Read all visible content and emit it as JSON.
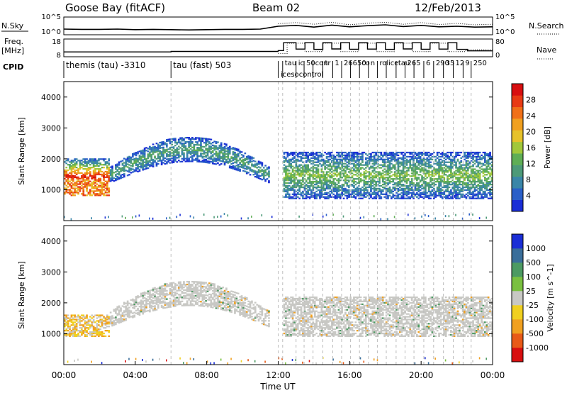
{
  "header": {
    "station": "Goose Bay (fitACF)",
    "beam": "Beam 02",
    "date": "12/Feb/2013"
  },
  "labels": {
    "nsky": "N.Sky",
    "freq": "Freq.",
    "freq_unit": "[MHz]",
    "cpid": "CPID",
    "nsearch": "N.Search",
    "nave": "Nave"
  },
  "cpid_segments": [
    {
      "start": 0,
      "label": "themis (tau) -3310"
    },
    {
      "start": 6,
      "label": "tau (fast) 503"
    },
    {
      "start": 12.0,
      "label": ""
    },
    {
      "start": 12.25,
      "label": "tau"
    },
    {
      "start": 13.0,
      "label": "ic"
    },
    {
      "start": 13.45,
      "label": "50"
    },
    {
      "start": 13.95,
      "label": "con"
    },
    {
      "start": 14.5,
      "label": "tr"
    },
    {
      "start": 15.05,
      "label": "1"
    },
    {
      "start": 15.55,
      "label": "26"
    },
    {
      "start": 16.05,
      "label": "650"
    },
    {
      "start": 16.55,
      "label": "co"
    },
    {
      "start": 17.05,
      "label": "n"
    },
    {
      "start": 17.55,
      "label": "rol"
    },
    {
      "start": 18.05,
      "label": "ice"
    },
    {
      "start": 18.6,
      "label": "tau"
    },
    {
      "start": 19.1,
      "label": "26"
    },
    {
      "start": 19.6,
      "label": "5"
    },
    {
      "start": 20.15,
      "label": "6"
    },
    {
      "start": 20.7,
      "label": "290"
    },
    {
      "start": 21.25,
      "label": "35"
    },
    {
      "start": 21.8,
      "label": "12"
    },
    {
      "start": 22.35,
      "label": "9"
    },
    {
      "start": 22.8,
      "label": "250"
    }
  ],
  "cpid_lowrow": "icesocontrol",
  "chart_data": [
    {
      "type": "line",
      "name": "N.Sky / N.Search",
      "left_ticks": [
        "10^5",
        "10^0"
      ],
      "right_ticks": [
        "10^5",
        "10^0"
      ],
      "x_range": [
        0,
        24
      ],
      "y_range": [
        0,
        5
      ],
      "series": [
        {
          "name": "N.Sky",
          "style": "solid",
          "values": [
            1.5,
            1.4,
            1.4,
            1.5,
            1.3,
            1.4,
            1.3,
            1.2,
            1.3,
            1.4,
            1.4,
            1.5,
            2.5,
            2.8,
            2.2,
            2.9,
            2.3,
            2.7,
            3.0,
            2.4,
            2.8,
            2.3,
            2.5,
            2.2,
            2.3
          ]
        },
        {
          "name": "N.Search",
          "style": "dotted",
          "values": [
            null,
            null,
            null,
            null,
            null,
            null,
            null,
            null,
            null,
            null,
            null,
            null,
            3.4,
            3.8,
            3.2,
            3.9,
            3.0,
            3.6,
            3.9,
            3.2,
            3.8,
            3.1,
            3.5,
            3.0,
            3.2
          ]
        }
      ]
    },
    {
      "type": "line",
      "name": "Freq / Nave",
      "left_ticks": [
        "18",
        "8"
      ],
      "right_ticks": [
        "80",
        "0"
      ],
      "x_range": [
        0,
        24
      ],
      "freq_range": [
        8,
        18
      ],
      "series": [
        {
          "name": "Freq",
          "style": "solid",
          "axis": "left",
          "times": [
            0,
            6,
            6,
            12,
            12,
            12.3,
            12.3,
            13.0,
            13.0,
            13.5,
            13.5,
            14.0,
            14.0,
            14.5,
            14.5,
            15.0,
            15.0,
            15.5,
            15.5,
            16.0,
            16.0,
            16.5,
            16.5,
            17.0,
            17.0,
            17.5,
            17.5,
            18.0,
            18.0,
            18.5,
            18.5,
            19.0,
            19.0,
            19.5,
            19.5,
            20.0,
            20.0,
            20.5,
            20.5,
            21.0,
            21.0,
            21.5,
            21.5,
            22.0,
            22.0,
            22.6,
            22.6,
            24
          ],
          "values": [
            10.3,
            10.3,
            10.6,
            10.6,
            11.2,
            11.2,
            16.5,
            16.5,
            12.2,
            12.2,
            16.5,
            16.5,
            12.0,
            12.0,
            16.5,
            16.5,
            12.3,
            12.3,
            16.5,
            16.5,
            12.1,
            12.1,
            16.5,
            16.5,
            12.2,
            12.2,
            16.5,
            16.5,
            12.0,
            12.0,
            16.5,
            16.5,
            12.3,
            12.3,
            16.5,
            16.5,
            12.1,
            12.1,
            16.5,
            16.5,
            12.2,
            12.2,
            16.5,
            16.5,
            12.0,
            12.0,
            11.0,
            11.0
          ]
        },
        {
          "name": "Nave",
          "style": "dotted",
          "axis": "right",
          "times": [
            12,
            12.5,
            12.5,
            13.5,
            13.5,
            14.5,
            14.5,
            15.5,
            15.5,
            16.5,
            16.5,
            17.5,
            17.5,
            18.5,
            18.5,
            19.5,
            19.5,
            20.5,
            20.5,
            21.5,
            21.5,
            22.5,
            22.5,
            24
          ],
          "values": [
            10,
            10,
            65,
            65,
            20,
            20,
            65,
            65,
            20,
            20,
            65,
            65,
            20,
            20,
            65,
            65,
            20,
            20,
            65,
            65,
            20,
            20,
            30,
            30
          ]
        }
      ]
    },
    {
      "type": "heatmap",
      "name": "Power",
      "ylabel": "Slant Range [km]",
      "ylim": [
        0,
        4500
      ],
      "yticks": [
        1000,
        2000,
        3000,
        4000
      ],
      "x_range": [
        0,
        24
      ],
      "colorbar": {
        "label": "Power [dB]",
        "ticks": [
          "4",
          "8",
          "12",
          "16",
          "20",
          "24",
          "28"
        ],
        "colors": [
          "#1a2ed6",
          "#2a5fc8",
          "#3a86a8",
          "#4d9a78",
          "#5fae55",
          "#a2c83a",
          "#e6c22a",
          "#f0a020",
          "#f07018",
          "#e83a14",
          "#d80f10"
        ]
      },
      "echo_bands": [
        {
          "t0": 0.0,
          "t1": 2.5,
          "r_low": 800,
          "r_high": 2000,
          "intensity": 0.9
        },
        {
          "t0": 2.5,
          "t1": 11.5,
          "r_low": 1600,
          "r_high": 2700,
          "intensity": 0.3
        },
        {
          "t0": 12.2,
          "t1": 24.0,
          "r_low": 700,
          "r_high": 2200,
          "intensity": 0.4
        }
      ]
    },
    {
      "type": "heatmap",
      "name": "Velocity",
      "ylabel": "Slant Range [km]",
      "xlabel": "Time UT",
      "ylim": [
        0,
        4500
      ],
      "yticks": [
        1000,
        2000,
        3000,
        4000
      ],
      "xticks": [
        "00:00",
        "04:00",
        "08:00",
        "12:00",
        "16:00",
        "20:00",
        "00:00"
      ],
      "x_range": [
        0,
        24
      ],
      "colorbar": {
        "label": "Velocity [m s^-1]",
        "ticks": [
          "1000",
          "500",
          "100",
          "25",
          "-25",
          "-100",
          "-500",
          "-1000"
        ],
        "colors": [
          "#1a2ed6",
          "#3a6e9a",
          "#4c9a62",
          "#7ac040",
          "#c8c8c4",
          "#f0d020",
          "#f0a020",
          "#e85a18",
          "#d80f10"
        ]
      },
      "echo_bands": [
        {
          "t0": 0.0,
          "t1": 2.5,
          "r_low": 900,
          "r_high": 1600,
          "intensity": 0.8
        },
        {
          "t0": 2.5,
          "t1": 11.5,
          "r_low": 1600,
          "r_high": 2700,
          "intensity": 0.1
        },
        {
          "t0": 12.2,
          "t1": 24.0,
          "r_low": 900,
          "r_high": 2200,
          "intensity": 0.2
        }
      ]
    }
  ]
}
